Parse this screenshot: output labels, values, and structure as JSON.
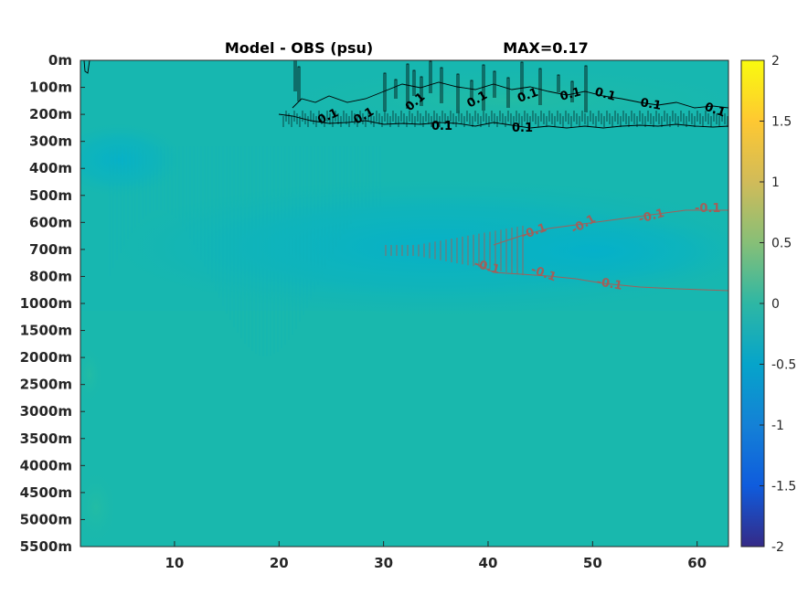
{
  "chart_data": {
    "type": "heatmap",
    "title_left": "Model - OBS (psu)",
    "title_right": "MAX=0.17",
    "x_ticks": [
      10,
      20,
      30,
      40,
      50,
      60
    ],
    "xlim": [
      1,
      63
    ],
    "y_ticks": [
      "0m",
      "100m",
      "200m",
      "300m",
      "400m",
      "500m",
      "600m",
      "700m",
      "800m",
      "1000m",
      "1500m",
      "2000m",
      "2500m",
      "3000m",
      "3500m",
      "4000m",
      "4500m",
      "5000m",
      "5500m"
    ],
    "colorbar": {
      "ticks": [
        "2",
        "1.5",
        "1",
        "0.5",
        "0",
        "-0.5",
        "-1",
        "-1.5",
        "-2"
      ],
      "range": [
        -2,
        2
      ],
      "colormap": "parula"
    },
    "contours": {
      "positive_level": 0.1,
      "negative_level": -0.1,
      "positive_color": "#000000",
      "negative_color": "#a0605a",
      "positive_labels": [
        "0.1",
        "0.1",
        "0.1",
        "0.1",
        "0.1",
        "0.1",
        "0.1",
        "0.1",
        "0.1",
        "0.1",
        "0.1"
      ],
      "negative_labels": [
        "-0.1",
        "-0.1",
        "-0.1",
        "-0.1",
        "-0.1",
        "-0.1",
        "-0.1"
      ]
    },
    "background_color": "#17b7b0",
    "positive_anomaly_color": "#1ebba6",
    "negative_anomaly_color": "#05aec8"
  }
}
